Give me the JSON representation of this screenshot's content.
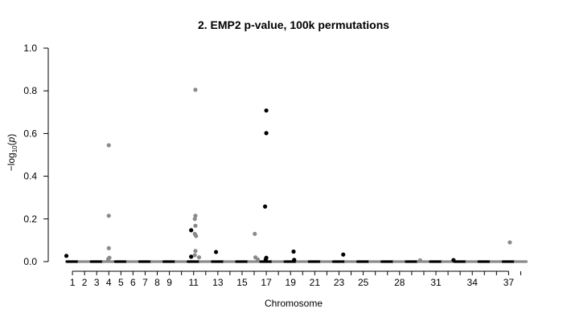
{
  "chart_data": {
    "type": "scatter",
    "title": "2. EMP2 p-value, 100k permutations",
    "xlabel": "Chromosome",
    "ylabel": "−log10(p)",
    "ylim": [
      0,
      1.0
    ],
    "yticks": [
      "0.0",
      "0.2",
      "0.4",
      "0.6",
      "0.8",
      "1.0"
    ],
    "ytick_values": [
      0,
      0.2,
      0.4,
      0.6,
      0.8,
      1.0
    ],
    "xlim": [
      0,
      38.5
    ],
    "xtick_labels": [
      "1",
      "2",
      "3",
      "4",
      "5",
      "6",
      "7",
      "8",
      "9",
      "11",
      "13",
      "15",
      "17",
      "19",
      "21",
      "23",
      "25",
      "28",
      "31",
      "34",
      "37"
    ],
    "xtick_positions": [
      1,
      2,
      3,
      4,
      5,
      6,
      7,
      8,
      9,
      11,
      13,
      15,
      17,
      19,
      21,
      23,
      25,
      28,
      31,
      34,
      37
    ],
    "colors": {
      "odd": "#000000",
      "even": "#8a8a8a"
    },
    "chromosomes": [
      1,
      2,
      3,
      4,
      5,
      6,
      7,
      8,
      9,
      10,
      11,
      12,
      13,
      14,
      15,
      16,
      17,
      18,
      19,
      20,
      21,
      22,
      23,
      24,
      25,
      26,
      27,
      28,
      29,
      30,
      31,
      32,
      33,
      34,
      35,
      36,
      37,
      38
    ],
    "points": [
      {
        "x": 0.5,
        "y": 0.027,
        "chr": 1
      },
      {
        "x": 4.0,
        "y": 0.545,
        "chr": 4
      },
      {
        "x": 4.0,
        "y": 0.215,
        "chr": 4
      },
      {
        "x": 4.0,
        "y": 0.063,
        "chr": 4
      },
      {
        "x": 4.05,
        "y": 0.018,
        "chr": 4
      },
      {
        "x": 3.95,
        "y": 0.012,
        "chr": 4
      },
      {
        "x": 10.8,
        "y": 0.147,
        "chr": 11
      },
      {
        "x": 10.8,
        "y": 0.023,
        "chr": 11
      },
      {
        "x": 11.15,
        "y": 0.805,
        "chr": 12
      },
      {
        "x": 11.15,
        "y": 0.215,
        "chr": 12
      },
      {
        "x": 11.1,
        "y": 0.2,
        "chr": 12
      },
      {
        "x": 11.15,
        "y": 0.168,
        "chr": 12
      },
      {
        "x": 11.1,
        "y": 0.13,
        "chr": 12
      },
      {
        "x": 11.2,
        "y": 0.12,
        "chr": 12
      },
      {
        "x": 11.15,
        "y": 0.05,
        "chr": 12
      },
      {
        "x": 11.1,
        "y": 0.03,
        "chr": 12
      },
      {
        "x": 11.45,
        "y": 0.02,
        "chr": 12
      },
      {
        "x": 12.85,
        "y": 0.045,
        "chr": 13
      },
      {
        "x": 16.05,
        "y": 0.13,
        "chr": 16
      },
      {
        "x": 16.1,
        "y": 0.02,
        "chr": 16
      },
      {
        "x": 16.3,
        "y": 0.01,
        "chr": 16
      },
      {
        "x": 17.0,
        "y": 0.708,
        "chr": 17
      },
      {
        "x": 17.0,
        "y": 0.602,
        "chr": 17
      },
      {
        "x": 16.9,
        "y": 0.258,
        "chr": 17
      },
      {
        "x": 17.0,
        "y": 0.018,
        "chr": 17
      },
      {
        "x": 16.95,
        "y": 0.01,
        "chr": 17
      },
      {
        "x": 19.25,
        "y": 0.047,
        "chr": 19
      },
      {
        "x": 19.3,
        "y": 0.008,
        "chr": 19
      },
      {
        "x": 23.35,
        "y": 0.033,
        "chr": 23
      },
      {
        "x": 29.7,
        "y": 0.006,
        "chr": 30
      },
      {
        "x": 32.45,
        "y": 0.007,
        "chr": 33
      },
      {
        "x": 37.1,
        "y": 0.09,
        "chr": 38
      }
    ]
  }
}
